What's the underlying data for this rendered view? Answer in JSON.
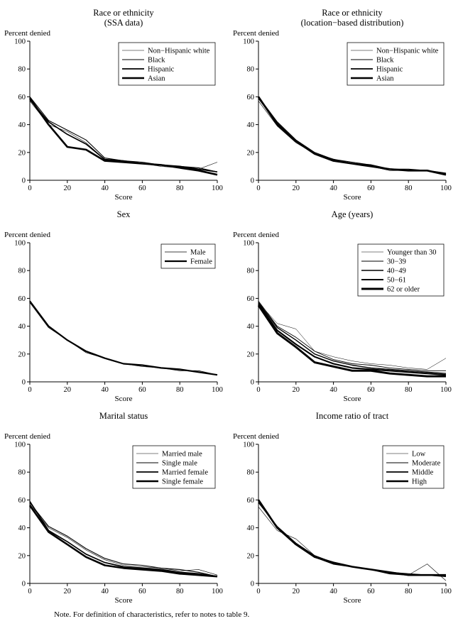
{
  "page": {
    "note": "Note. For definition of characteristics, refer to notes to table 9."
  },
  "chart_data": [
    {
      "type": "line",
      "title_lines": [
        "Race or ethnicity",
        "(SSA data)"
      ],
      "ylabel": "Percent denied",
      "xlabel": "Score",
      "xlim": [
        0,
        100
      ],
      "ylim": [
        0,
        100
      ],
      "xticks": [
        0,
        20,
        40,
        60,
        80,
        100
      ],
      "yticks": [
        0,
        20,
        40,
        60,
        80,
        100
      ],
      "grid": false,
      "legend_position": "top-right",
      "line_color": "#000000",
      "x": [
        0,
        10,
        20,
        30,
        40,
        50,
        60,
        70,
        80,
        90,
        100
      ],
      "series": [
        {
          "name": "Non−Hispanic white",
          "line_width": 0.6,
          "values": [
            57,
            40,
            35,
            27,
            15,
            13,
            12,
            10,
            9,
            8,
            13
          ]
        },
        {
          "name": "Black",
          "line_width": 1.1,
          "values": [
            60,
            43,
            36,
            29,
            16,
            14,
            13,
            11,
            10,
            9,
            6
          ]
        },
        {
          "name": "Hispanic",
          "line_width": 1.7,
          "values": [
            58,
            42,
            33,
            26,
            15,
            14,
            12,
            11,
            10,
            8,
            6
          ]
        },
        {
          "name": "Asian",
          "line_width": 2.6,
          "values": [
            59,
            40,
            24,
            22,
            14,
            13,
            12,
            11,
            9,
            7,
            4
          ]
        }
      ]
    },
    {
      "type": "line",
      "title_lines": [
        "Race or ethnicity",
        "(location−based distribution)"
      ],
      "ylabel": "Percent denied",
      "xlabel": "Score",
      "xlim": [
        0,
        100
      ],
      "ylim": [
        0,
        100
      ],
      "xticks": [
        0,
        20,
        40,
        60,
        80,
        100
      ],
      "yticks": [
        0,
        20,
        40,
        60,
        80,
        100
      ],
      "grid": false,
      "legend_position": "top-right",
      "line_color": "#000000",
      "x": [
        0,
        10,
        20,
        30,
        40,
        50,
        60,
        70,
        80,
        90,
        100
      ],
      "series": [
        {
          "name": "Non−Hispanic white",
          "line_width": 0.6,
          "values": [
            57,
            39,
            27,
            19,
            14,
            12,
            10,
            7,
            7,
            7,
            4
          ]
        },
        {
          "name": "Black",
          "line_width": 1.1,
          "values": [
            60,
            42,
            29,
            20,
            15,
            13,
            11,
            8,
            8,
            7,
            5
          ]
        },
        {
          "name": "Hispanic",
          "line_width": 1.7,
          "values": [
            59,
            41,
            28,
            19,
            15,
            12,
            11,
            8,
            7,
            7,
            5
          ]
        },
        {
          "name": "Asian",
          "line_width": 2.6,
          "values": [
            60,
            40,
            28,
            19,
            14,
            12,
            10,
            8,
            7,
            7,
            4
          ]
        }
      ]
    },
    {
      "type": "line",
      "title_lines": [
        "Sex"
      ],
      "ylabel": "Percent denied",
      "xlabel": "Score",
      "xlim": [
        0,
        100
      ],
      "ylim": [
        0,
        100
      ],
      "xticks": [
        0,
        20,
        40,
        60,
        80,
        100
      ],
      "yticks": [
        0,
        20,
        40,
        60,
        80,
        100
      ],
      "grid": false,
      "legend_position": "top-right",
      "line_color": "#000000",
      "x": [
        0,
        10,
        20,
        30,
        40,
        50,
        60,
        70,
        80,
        90,
        100
      ],
      "series": [
        {
          "name": "Male",
          "line_width": 0.8,
          "values": [
            57,
            39,
            30,
            21,
            17,
            13,
            11,
            10,
            8,
            8,
            5
          ]
        },
        {
          "name": "Female",
          "line_width": 2.2,
          "values": [
            58,
            40,
            30,
            22,
            17,
            13,
            12,
            10,
            9,
            7,
            5
          ]
        }
      ]
    },
    {
      "type": "line",
      "title_lines": [
        "Age (years)"
      ],
      "ylabel": "Percent denied",
      "xlabel": "Score",
      "xlim": [
        0,
        100
      ],
      "ylim": [
        0,
        100
      ],
      "xticks": [
        0,
        20,
        40,
        60,
        80,
        100
      ],
      "yticks": [
        0,
        20,
        40,
        60,
        80,
        100
      ],
      "grid": false,
      "legend_position": "top-right",
      "line_color": "#000000",
      "x": [
        0,
        10,
        20,
        30,
        40,
        50,
        60,
        70,
        80,
        90,
        100
      ],
      "series": [
        {
          "name": "Younger than 30",
          "line_width": 0.5,
          "values": [
            57,
            42,
            38,
            22,
            18,
            15,
            13,
            12,
            10,
            9,
            17
          ]
        },
        {
          "name": "30−39",
          "line_width": 0.9,
          "values": [
            58,
            40,
            32,
            22,
            16,
            13,
            12,
            10,
            9,
            8,
            8
          ]
        },
        {
          "name": "40−49",
          "line_width": 1.4,
          "values": [
            57,
            39,
            30,
            20,
            15,
            12,
            10,
            9,
            8,
            7,
            6
          ]
        },
        {
          "name": "50−61",
          "line_width": 2.1,
          "values": [
            56,
            37,
            27,
            18,
            13,
            10,
            9,
            8,
            7,
            6,
            5
          ]
        },
        {
          "name": "62 or older",
          "line_width": 2.9,
          "values": [
            55,
            35,
            25,
            14,
            11,
            8,
            8,
            6,
            5,
            4,
            4
          ]
        }
      ]
    },
    {
      "type": "line",
      "title_lines": [
        "Marital status"
      ],
      "ylabel": "Percent denied",
      "xlabel": "Score",
      "xlim": [
        0,
        100
      ],
      "ylim": [
        0,
        100
      ],
      "xticks": [
        0,
        20,
        40,
        60,
        80,
        100
      ],
      "yticks": [
        0,
        20,
        40,
        60,
        80,
        100
      ],
      "grid": false,
      "legend_position": "top-right",
      "line_color": "#000000",
      "x": [
        0,
        10,
        20,
        30,
        40,
        50,
        60,
        70,
        80,
        90,
        100
      ],
      "series": [
        {
          "name": "Married male",
          "line_width": 0.6,
          "values": [
            57,
            40,
            33,
            24,
            17,
            13,
            12,
            11,
            9,
            10,
            6
          ]
        },
        {
          "name": "Single male",
          "line_width": 1.1,
          "values": [
            58,
            41,
            34,
            25,
            18,
            14,
            13,
            11,
            10,
            8,
            5
          ]
        },
        {
          "name": "Married female",
          "line_width": 1.7,
          "values": [
            59,
            38,
            30,
            21,
            15,
            12,
            11,
            10,
            8,
            7,
            5
          ]
        },
        {
          "name": "Single female",
          "line_width": 2.6,
          "values": [
            56,
            37,
            28,
            19,
            13,
            11,
            10,
            9,
            7,
            6,
            5
          ]
        }
      ]
    },
    {
      "type": "line",
      "title_lines": [
        "Income ratio of tract"
      ],
      "ylabel": "Percent denied",
      "xlabel": "Score",
      "xlim": [
        0,
        100
      ],
      "ylim": [
        0,
        100
      ],
      "xticks": [
        0,
        20,
        40,
        60,
        80,
        100
      ],
      "yticks": [
        0,
        20,
        40,
        60,
        80,
        100
      ],
      "grid": false,
      "legend_position": "top-right",
      "line_color": "#000000",
      "x": [
        0,
        10,
        20,
        30,
        40,
        50,
        60,
        70,
        80,
        90,
        100
      ],
      "series": [
        {
          "name": "Low",
          "line_width": 0.6,
          "values": [
            55,
            38,
            32,
            20,
            15,
            12,
            10,
            8,
            6,
            14,
            2
          ]
        },
        {
          "name": "Moderate",
          "line_width": 1.1,
          "values": [
            58,
            41,
            29,
            20,
            15,
            12,
            10,
            8,
            7,
            6,
            5
          ]
        },
        {
          "name": "Middle",
          "line_width": 1.7,
          "values": [
            59,
            40,
            28,
            19,
            14,
            12,
            10,
            7,
            6,
            6,
            5
          ]
        },
        {
          "name": "High",
          "line_width": 2.6,
          "values": [
            60,
            40,
            28,
            19,
            15,
            12,
            10,
            8,
            6,
            6,
            6
          ]
        }
      ]
    }
  ]
}
